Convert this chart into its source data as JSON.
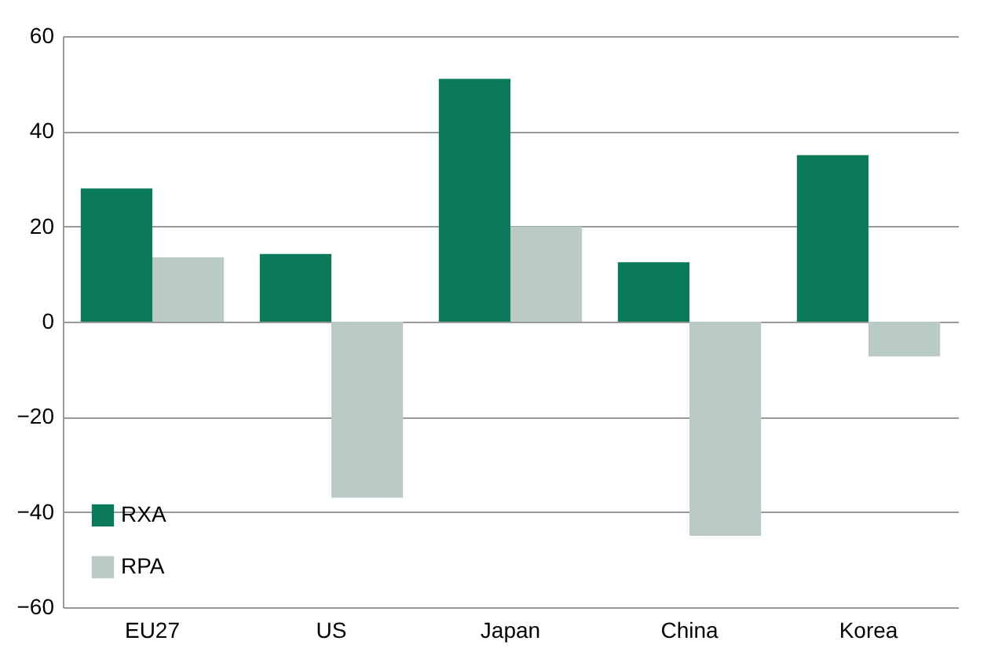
{
  "chart_data": {
    "type": "bar",
    "categories": [
      "EU27",
      "US",
      "Japan",
      "China",
      "Korea"
    ],
    "series": [
      {
        "name": "RXA",
        "color": "#0b7a5a",
        "values": [
          28,
          14.2,
          51,
          12.5,
          35
        ]
      },
      {
        "name": "RPA",
        "color": "#bacbc4",
        "values": [
          13.5,
          -37,
          20,
          -45,
          -7.3
        ]
      }
    ],
    "ylim": [
      -60,
      60
    ],
    "yticks": [
      -60,
      -40,
      -20,
      0,
      20,
      40,
      60
    ],
    "grid": "y",
    "legend": "bottom left"
  }
}
